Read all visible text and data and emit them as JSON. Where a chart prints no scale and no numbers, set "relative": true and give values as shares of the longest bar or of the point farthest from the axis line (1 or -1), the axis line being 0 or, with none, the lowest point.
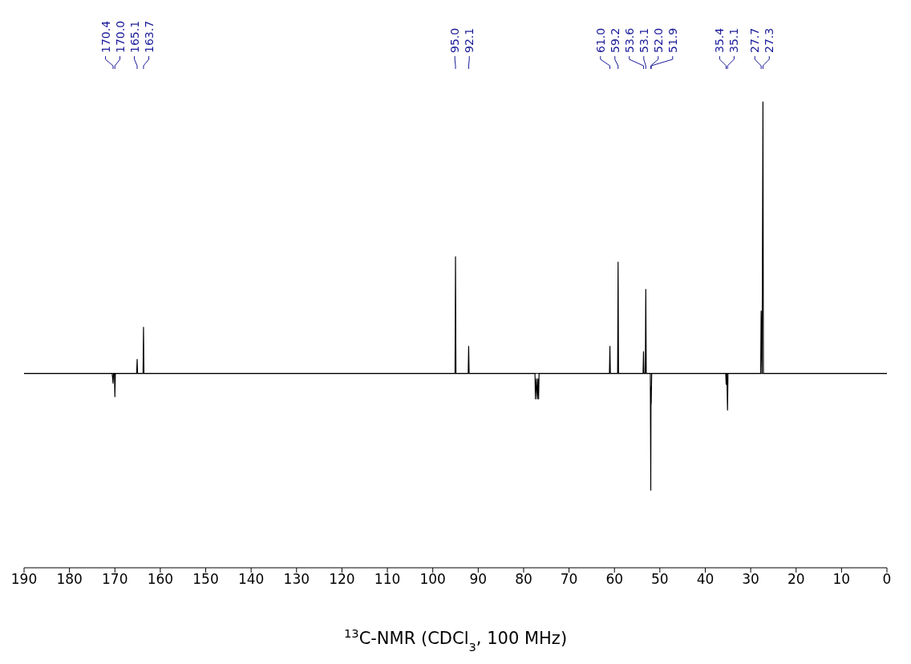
{
  "chart_data": {
    "type": "line",
    "relative": true,
    "xlabel": "$^{13}$C-NMR (CDCl$_{3}$, 100 MHz)",
    "xlim": [
      190,
      0
    ],
    "xticks": [
      190,
      180,
      170,
      160,
      150,
      140,
      130,
      120,
      110,
      100,
      90,
      80,
      70,
      60,
      50,
      40,
      30,
      20,
      10,
      0
    ],
    "tick_labels": "x",
    "grid": false,
    "marker": "none",
    "line_style": "solid",
    "series": [
      {
        "color": "#000000",
        "x": [
          190,
          170.6,
          170.4,
          170.3,
          170.1,
          170.0,
          169.9,
          165.2,
          165.1,
          165.0,
          163.8,
          163.7,
          163.6,
          95.1,
          95.0,
          94.9,
          92.2,
          92.1,
          92.0,
          77.5,
          77.4,
          77.2,
          77.0,
          76.85,
          76.7,
          76.6,
          61.1,
          61.0,
          60.9,
          59.3,
          59.2,
          59.1,
          53.7,
          53.6,
          53.5,
          53.2,
          53.1,
          53.0,
          52.1,
          52.0,
          51.95,
          51.9,
          51.8,
          35.5,
          35.4,
          35.25,
          35.1,
          35.0,
          27.8,
          27.7,
          27.5,
          27.3,
          27.2,
          0
        ],
        "values": [
          0,
          0,
          -0.036,
          0,
          0,
          -0.086,
          0,
          0,
          0.052,
          0,
          0,
          0.17,
          0,
          0,
          0.43,
          0,
          0,
          0.1,
          0,
          0,
          -0.094,
          -0.02,
          -0.094,
          -0.02,
          -0.094,
          0,
          0,
          0.1,
          0,
          0,
          0.41,
          0,
          0,
          0.08,
          0,
          0,
          0.31,
          0,
          0,
          -0.43,
          -0.05,
          -0.11,
          0,
          0,
          -0.04,
          0,
          -0.135,
          0,
          0,
          0.23,
          0,
          1.0,
          0,
          0
        ]
      }
    ],
    "annotations": [
      {
        "text": "170.4",
        "x": 170.4
      },
      {
        "text": "170.0",
        "x": 170.0
      },
      {
        "text": "165.1",
        "x": 165.1
      },
      {
        "text": "163.7",
        "x": 163.7
      },
      {
        "text": "95.0",
        "x": 95.0
      },
      {
        "text": "92.1",
        "x": 92.1
      },
      {
        "text": "61.0",
        "x": 61.0
      },
      {
        "text": "59.2",
        "x": 59.2
      },
      {
        "text": "53.6",
        "x": 53.6
      },
      {
        "text": "53.1",
        "x": 53.1
      },
      {
        "text": "52.0",
        "x": 52.0
      },
      {
        "text": "51.9",
        "x": 51.9
      },
      {
        "text": "35.4",
        "x": 35.4
      },
      {
        "text": "35.1",
        "x": 35.1
      },
      {
        "text": "27.7",
        "x": 27.7
      },
      {
        "text": "27.3",
        "x": 27.3
      }
    ]
  }
}
